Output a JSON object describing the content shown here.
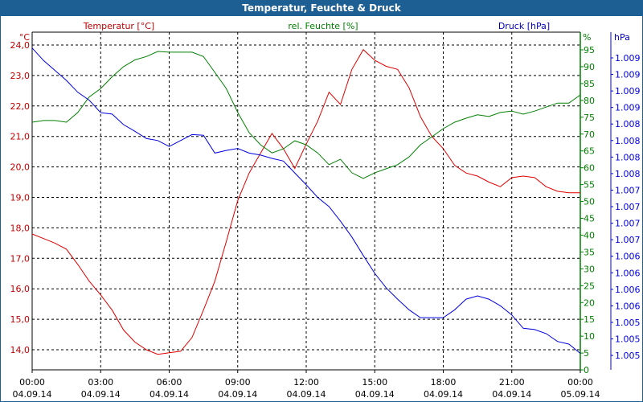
{
  "window_title": "Temperatur, Feuchte & Druck",
  "colors": {
    "temperature": "#e00000",
    "humidity": "#008000",
    "pressure": "#0000e0",
    "title_bar": "#1d5f93"
  },
  "chart_data": {
    "type": "line",
    "title": "Temperatur, Feuchte & Druck",
    "grid": true,
    "x_ticks": [
      {
        "time": "00:00",
        "date": "04.09.14"
      },
      {
        "time": "03:00",
        "date": "04.09.14"
      },
      {
        "time": "06:00",
        "date": "04.09.14"
      },
      {
        "time": "09:00",
        "date": "04.09.14"
      },
      {
        "time": "12:00",
        "date": "04.09.14"
      },
      {
        "time": "15:00",
        "date": "04.09.14"
      },
      {
        "time": "18:00",
        "date": "04.09.14"
      },
      {
        "time": "21:00",
        "date": "04.09.14"
      },
      {
        "time": "00:00",
        "date": "05.09.14"
      }
    ],
    "x_hours": [
      0,
      0.5,
      1,
      1.5,
      2,
      2.5,
      3,
      3.5,
      4,
      4.5,
      5,
      5.5,
      6,
      6.5,
      7,
      7.5,
      8,
      8.5,
      9,
      9.5,
      10,
      10.5,
      11,
      11.5,
      12,
      12.5,
      13,
      13.5,
      14,
      14.5,
      15,
      15.5,
      16,
      16.5,
      17,
      17.5,
      18,
      18.5,
      19,
      19.5,
      20,
      20.5,
      21,
      21.5,
      22,
      22.5,
      23,
      23.5,
      24
    ],
    "axes": {
      "temperature": {
        "label": "Temperatur [°C]",
        "unit": "°C",
        "range": [
          13.4,
          24.4
        ],
        "ticks": [
          "24,0",
          "23,0",
          "22,0",
          "21,0",
          "20,0",
          "19,0",
          "18,0",
          "17,0",
          "16,0",
          "15,0",
          "14,0"
        ]
      },
      "humidity": {
        "label": "rel. Feuchte [%]",
        "unit": "%",
        "range": [
          0,
          100
        ],
        "ticks": [
          "95",
          "90",
          "85",
          "80",
          "75",
          "70",
          "65",
          "60",
          "55",
          "50",
          "45",
          "40",
          "35",
          "30",
          "25",
          "20",
          "15",
          "10",
          "5",
          "0"
        ]
      },
      "pressure": {
        "label": "Druck [hPa]",
        "unit": "hPa",
        "range": [
          1.00475,
          1.00925
        ],
        "ticks": [
          "1.009",
          "1.009",
          "1.009",
          "1.009",
          "1.008",
          "1.008",
          "1.008",
          "1.008",
          "1.007",
          "1.007",
          "1.007",
          "1.007",
          "1.006",
          "1.006",
          "1.006",
          "1.006",
          "1.005",
          "1.005",
          "1.005"
        ]
      }
    },
    "series": [
      {
        "name": "Temperatur [°C]",
        "axis": "temperature",
        "values": [
          17.8,
          17.65,
          17.5,
          17.3,
          16.8,
          16.25,
          15.8,
          15.3,
          14.65,
          14.25,
          14.0,
          13.85,
          13.9,
          13.95,
          14.4,
          15.3,
          16.25,
          17.55,
          18.9,
          19.8,
          20.45,
          21.1,
          20.6,
          19.95,
          20.75,
          21.5,
          22.45,
          22.05,
          23.2,
          23.85,
          23.5,
          23.3,
          23.2,
          22.6,
          21.65,
          21.0,
          20.6,
          20.05,
          19.8,
          19.7,
          19.5,
          19.35,
          19.65,
          19.7,
          19.65,
          19.35,
          19.2,
          19.15,
          19.15
        ]
      },
      {
        "name": "rel. Feuchte [%]",
        "axis": "humidity",
        "values": [
          73.5,
          74,
          74,
          73.5,
          76.4,
          81,
          83.5,
          87,
          90,
          92,
          93,
          94.5,
          94.3,
          94.3,
          94.3,
          93,
          88.3,
          83.5,
          76.4,
          70.4,
          66.8,
          64.4,
          65.6,
          68,
          66.8,
          64.4,
          60.9,
          62.5,
          58.5,
          56.8,
          58.5,
          59.7,
          60.9,
          63.2,
          66.8,
          69.2,
          71.6,
          73.5,
          74.7,
          75.7,
          75.2,
          76.4,
          76.8,
          75.9,
          76.8,
          78,
          79.2,
          79.2,
          81.6
        ]
      },
      {
        "name": "Druck [hPa]",
        "axis": "pressure",
        "values": [
          1.0094,
          1.00921,
          1.00906,
          1.00891,
          1.00873,
          1.00861,
          1.00842,
          1.0084,
          1.00824,
          1.00814,
          1.00803,
          1.008,
          1.00791,
          1.008,
          1.00809,
          1.00808,
          1.00781,
          1.00785,
          1.00788,
          1.00781,
          1.00778,
          1.00773,
          1.00769,
          1.00751,
          1.00733,
          1.00714,
          1.007,
          1.00678,
          1.00654,
          1.00626,
          1.00599,
          1.00577,
          1.0056,
          1.00544,
          1.00532,
          1.00532,
          1.00532,
          1.00544,
          1.0056,
          1.00565,
          1.0056,
          1.0055,
          1.00536,
          1.00516,
          1.00514,
          1.00508,
          1.00496,
          1.00492,
          1.00478
        ]
      }
    ]
  }
}
